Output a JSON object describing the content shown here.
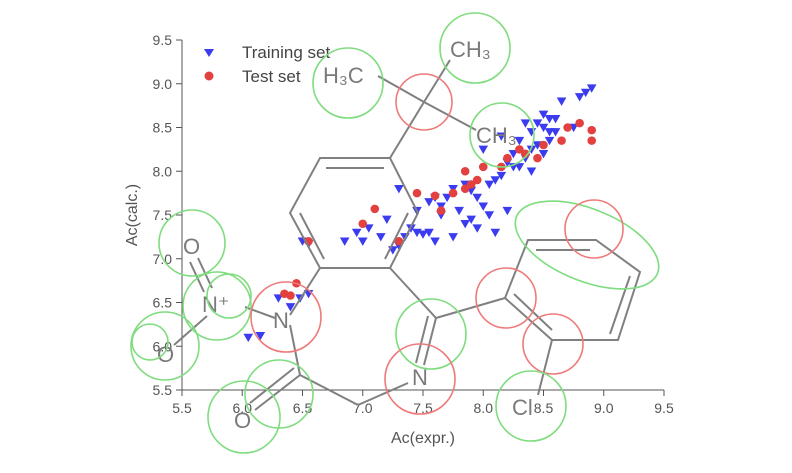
{
  "chart_data": {
    "type": "scatter",
    "title": "",
    "xlabel": "Ac(expr.)",
    "ylabel": "Ac(calc.)",
    "xlim": [
      5.5,
      9.5
    ],
    "ylim": [
      5.5,
      9.5
    ],
    "x_ticks": [
      "5.5",
      "6.0",
      "6.5",
      "7.0",
      "7.5",
      "8.0",
      "8.5",
      "9.0",
      "9.5"
    ],
    "y_ticks": [
      "5.5",
      "6.0",
      "6.5",
      "7.0",
      "7.5",
      "8.0",
      "8.5",
      "9.0",
      "9.5"
    ],
    "x_tick_values": [
      5.5,
      6.0,
      6.5,
      7.0,
      7.5,
      8.0,
      8.5,
      9.0,
      9.5
    ],
    "y_tick_values": [
      5.5,
      6.0,
      6.5,
      7.0,
      7.5,
      8.0,
      8.5,
      9.0,
      9.5
    ],
    "grid": false,
    "legend_position": "top-left",
    "series": [
      {
        "name": "Training set",
        "marker": "triangle-down",
        "color": "#3b3bf0",
        "points": [
          [
            6.05,
            6.1
          ],
          [
            6.15,
            6.12
          ],
          [
            6.4,
            6.45
          ],
          [
            6.48,
            6.55
          ],
          [
            6.55,
            6.6
          ],
          [
            6.3,
            6.55
          ],
          [
            6.5,
            7.2
          ],
          [
            6.55,
            7.17
          ],
          [
            6.85,
            7.2
          ],
          [
            6.95,
            7.3
          ],
          [
            7.0,
            7.2
          ],
          [
            7.15,
            7.25
          ],
          [
            7.25,
            7.1
          ],
          [
            7.3,
            7.15
          ],
          [
            7.35,
            7.25
          ],
          [
            7.4,
            7.35
          ],
          [
            7.45,
            7.3
          ],
          [
            7.5,
            7.28
          ],
          [
            7.55,
            7.3
          ],
          [
            7.6,
            7.2
          ],
          [
            7.45,
            7.55
          ],
          [
            7.55,
            7.65
          ],
          [
            7.6,
            7.7
          ],
          [
            7.65,
            7.6
          ],
          [
            7.7,
            7.7
          ],
          [
            7.75,
            7.8
          ],
          [
            7.8,
            7.55
          ],
          [
            7.85,
            7.85
          ],
          [
            7.9,
            7.78
          ],
          [
            7.95,
            7.7
          ],
          [
            7.9,
            7.45
          ],
          [
            7.95,
            7.35
          ],
          [
            8.0,
            7.6
          ],
          [
            8.05,
            7.85
          ],
          [
            8.1,
            7.9
          ],
          [
            8.15,
            7.95
          ],
          [
            8.05,
            7.5
          ],
          [
            8.1,
            7.3
          ],
          [
            7.85,
            7.4
          ],
          [
            8.2,
            8.1
          ],
          [
            8.25,
            8.2
          ],
          [
            8.3,
            8.05
          ],
          [
            8.35,
            8.15
          ],
          [
            8.4,
            8.25
          ],
          [
            8.45,
            8.3
          ],
          [
            8.5,
            8.2
          ],
          [
            8.55,
            8.35
          ],
          [
            8.4,
            8.45
          ],
          [
            8.45,
            8.55
          ],
          [
            8.5,
            8.5
          ],
          [
            8.55,
            8.45
          ],
          [
            8.6,
            8.6
          ],
          [
            8.65,
            8.8
          ],
          [
            8.55,
            8.6
          ],
          [
            8.35,
            8.55
          ],
          [
            8.5,
            8.65
          ],
          [
            8.75,
            8.5
          ],
          [
            8.8,
            8.85
          ],
          [
            8.85,
            8.9
          ],
          [
            8.9,
            8.95
          ],
          [
            8.25,
            8.05
          ],
          [
            8.3,
            8.35
          ],
          [
            8.0,
            8.25
          ],
          [
            7.65,
            7.5
          ],
          [
            7.75,
            7.25
          ],
          [
            7.2,
            7.45
          ],
          [
            8.6,
            8.45
          ],
          [
            8.4,
            8.0
          ],
          [
            8.15,
            8.4
          ],
          [
            7.3,
            7.8
          ],
          [
            7.05,
            7.35
          ],
          [
            8.2,
            7.55
          ]
        ]
      },
      {
        "name": "Test set",
        "marker": "circle",
        "color": "#e34040",
        "points": [
          [
            6.35,
            6.6
          ],
          [
            6.4,
            6.58
          ],
          [
            6.45,
            6.72
          ],
          [
            6.55,
            7.2
          ],
          [
            7.0,
            7.4
          ],
          [
            7.1,
            7.57
          ],
          [
            7.3,
            7.2
          ],
          [
            7.45,
            7.75
          ],
          [
            7.6,
            7.72
          ],
          [
            7.75,
            7.75
          ],
          [
            7.85,
            7.8
          ],
          [
            7.9,
            7.85
          ],
          [
            7.95,
            7.9
          ],
          [
            8.0,
            8.05
          ],
          [
            8.15,
            8.05
          ],
          [
            8.2,
            8.15
          ],
          [
            8.3,
            8.25
          ],
          [
            8.35,
            8.2
          ],
          [
            8.45,
            8.15
          ],
          [
            8.5,
            8.3
          ],
          [
            8.65,
            8.35
          ],
          [
            8.7,
            8.5
          ],
          [
            8.8,
            8.55
          ],
          [
            8.9,
            8.47
          ],
          [
            8.9,
            8.35
          ],
          [
            7.65,
            7.55
          ],
          [
            7.85,
            8.0
          ]
        ]
      }
    ],
    "overlay": {
      "atom_labels": [
        {
          "name": "atom-label-ch3-top",
          "text": "CH₃"
        },
        {
          "name": "atom-label-h3c",
          "text": "H₃C"
        },
        {
          "name": "atom-label-ch3-right",
          "text": "CH₃"
        },
        {
          "name": "atom-label-o-upper",
          "text": "O"
        },
        {
          "name": "atom-label-nplus",
          "text": "N⁺"
        },
        {
          "name": "atom-label-n-nitro",
          "text": "N"
        },
        {
          "name": "atom-label-o-lower",
          "text": "O"
        },
        {
          "name": "atom-label-o-carbonyl",
          "text": "O"
        },
        {
          "name": "atom-label-n-imine",
          "text": "N"
        },
        {
          "name": "atom-label-cl",
          "text": "Cl"
        }
      ],
      "green_color": "#7fdc7f",
      "red_color": "#ef7a7a",
      "bond_color": "#808080"
    }
  }
}
